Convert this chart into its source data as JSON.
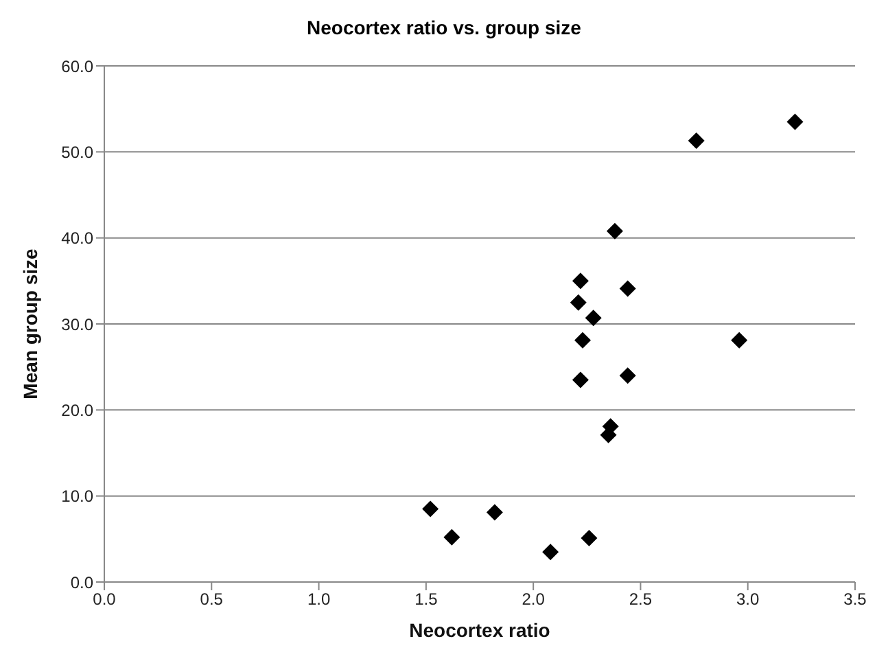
{
  "chart_data": {
    "type": "scatter",
    "title": "Neocortex ratio vs. group size",
    "xlabel": "Neocortex ratio",
    "ylabel": "Mean group size",
    "x": [
      1.52,
      1.62,
      1.82,
      2.08,
      2.26,
      2.35,
      2.36,
      2.22,
      2.44,
      2.23,
      2.96,
      2.22,
      2.21,
      2.28,
      2.44,
      2.38,
      2.76,
      3.22
    ],
    "values": [
      8.5,
      5.2,
      8.1,
      3.5,
      5.1,
      17.1,
      18.1,
      23.5,
      24.0,
      28.1,
      28.1,
      35.0,
      32.5,
      30.7,
      34.1,
      40.8,
      51.3,
      53.5
    ],
    "color": "#000000",
    "marker": "diamond",
    "xlim": [
      0,
      3.5
    ],
    "xticks": [
      {
        "value": 0,
        "label": "0.0"
      },
      {
        "value": 0.5,
        "label": "0.5"
      },
      {
        "value": 1,
        "label": "1.0"
      },
      {
        "value": 1.5,
        "label": "1.5"
      },
      {
        "value": 2,
        "label": "2.0"
      },
      {
        "value": 2.5,
        "label": "2.5"
      },
      {
        "value": 3,
        "label": "3.0"
      },
      {
        "value": 3.5,
        "label": "3.5"
      }
    ],
    "ylim": [
      0,
      60
    ],
    "yticks": [
      {
        "value": 0,
        "label": "0.0"
      },
      {
        "value": 10,
        "label": "10.0"
      },
      {
        "value": 20,
        "label": "20.0"
      },
      {
        "value": 30,
        "label": "30.0"
      },
      {
        "value": 40,
        "label": "40.0"
      },
      {
        "value": 50,
        "label": "50.0"
      },
      {
        "value": 60,
        "label": "60.0"
      }
    ],
    "grid": "y"
  }
}
